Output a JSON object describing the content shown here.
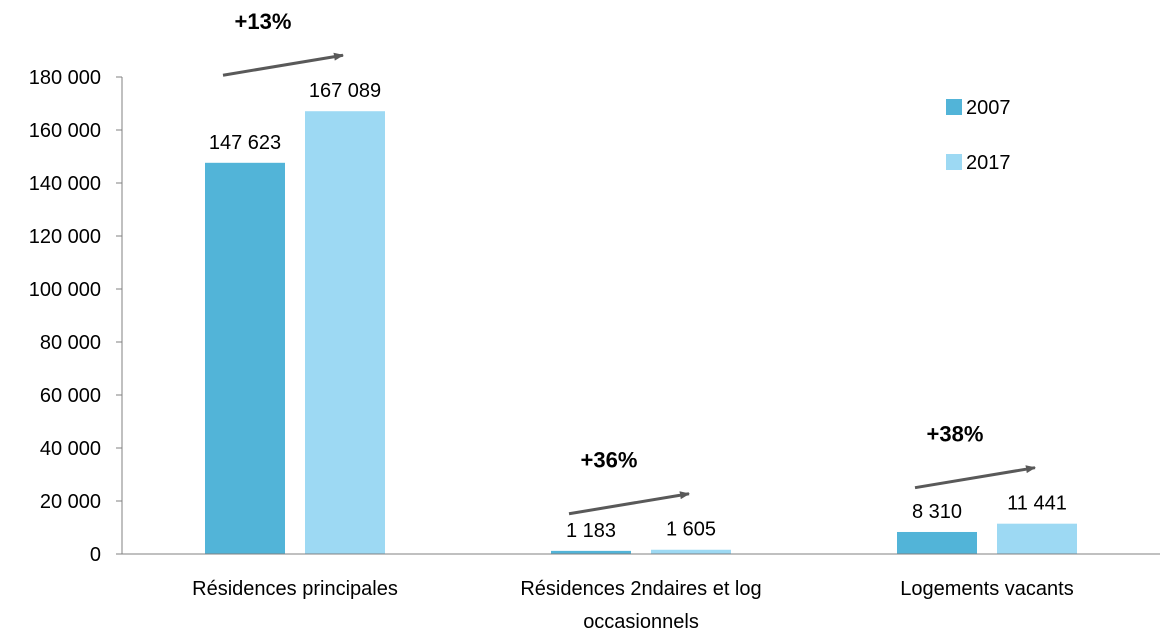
{
  "chart_data": {
    "type": "bar",
    "categories": [
      [
        "Résidences principales"
      ],
      [
        "Résidences 2ndaires et log",
        "occasionnels"
      ],
      [
        "Logements vacants"
      ]
    ],
    "series": [
      {
        "name": "2007",
        "values": [
          147623,
          1183,
          8310
        ],
        "labels": [
          "147 623",
          "1 183",
          "8 310"
        ],
        "color": "#52B4D8"
      },
      {
        "name": "2017",
        "values": [
          167089,
          1605,
          11441
        ],
        "labels": [
          "167 089",
          "1 605",
          "11 441"
        ],
        "color": "#9DD9F3"
      }
    ],
    "growth_annotations": [
      "+13%",
      "+36%",
      "+38%"
    ],
    "ylim": [
      0,
      180000
    ],
    "yticks": [
      0,
      20000,
      40000,
      60000,
      80000,
      100000,
      120000,
      140000,
      160000,
      180000
    ],
    "ytick_labels": [
      "0",
      "20 000",
      "40 000",
      "60 000",
      "80 000",
      "100 000",
      "120 000",
      "140 000",
      "160 000",
      "180 000"
    ],
    "legend_position": "top-right",
    "arrow_color": "#595959",
    "axis_color": "#808080",
    "title": "",
    "xlabel": "",
    "ylabel": ""
  }
}
